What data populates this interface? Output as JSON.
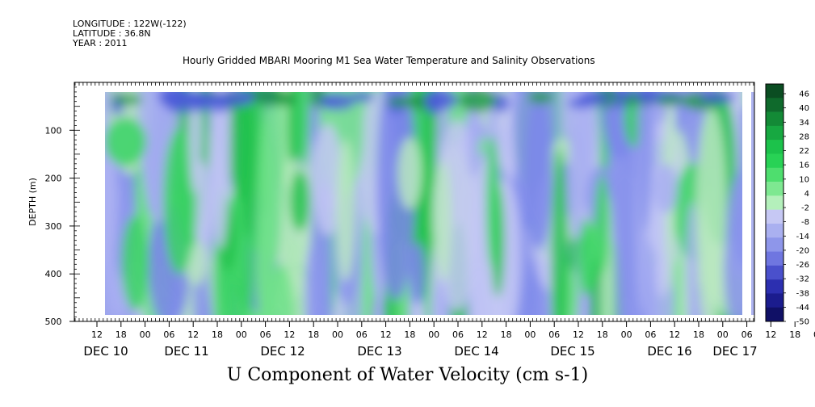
{
  "header": {
    "longitude": "LONGITUDE : 122W(-122)",
    "latitude": "LATITUDE : 36.8N",
    "year": "YEAR : 2011"
  },
  "chart_data": {
    "type": "heatmap",
    "title": "Hourly Gridded MBARI Mooring M1 Sea Water Temperature and Salinity Observations",
    "xlabel": "U Component of Water Velocity (cm s-1)",
    "ylabel": "DEPTH (m)",
    "x_range": [
      "2011-12-09T06:00",
      "2011-12-17T08:00"
    ],
    "ylim": [
      500,
      0
    ],
    "y_ticks": [
      100,
      200,
      300,
      400,
      500
    ],
    "y_tick_labels": [
      "100",
      "200",
      "300",
      "400",
      "500"
    ],
    "x_hour_ticks": [
      "12",
      "18",
      "00",
      "06",
      "12",
      "18",
      "00",
      "06",
      "12",
      "18",
      "00",
      "06",
      "12",
      "18",
      "00",
      "06",
      "12",
      "18",
      "00",
      "06",
      "12",
      "18",
      "00",
      "06",
      "12",
      "18",
      "00",
      "06",
      "12",
      "18",
      "00",
      "06"
    ],
    "x_date_labels": [
      "DEC 10",
      "DEC 11",
      "DEC 12",
      "DEC 13",
      "DEC 14",
      "DEC 15",
      "DEC 16",
      "DEC 17"
    ],
    "colorbar_levels": [
      46,
      40,
      34,
      28,
      22,
      16,
      10,
      4,
      -2,
      -8,
      -14,
      -20,
      -26,
      -32,
      -38,
      -44,
      -50
    ],
    "colorbar_labels": [
      "46",
      "40",
      "34",
      "28",
      "22",
      "16",
      "10",
      "4",
      "-2",
      "-8",
      "-14",
      "-20",
      "-26",
      "-32",
      "-38",
      "-44",
      "-50"
    ],
    "colors": {
      "strong_positive": "#0a5a28",
      "positive": "#22c84a",
      "weak_positive": "#88e890",
      "weak_negative": "#b4b8f0",
      "negative": "#8c96ec",
      "strong_negative": "#1a1a80"
    }
  }
}
